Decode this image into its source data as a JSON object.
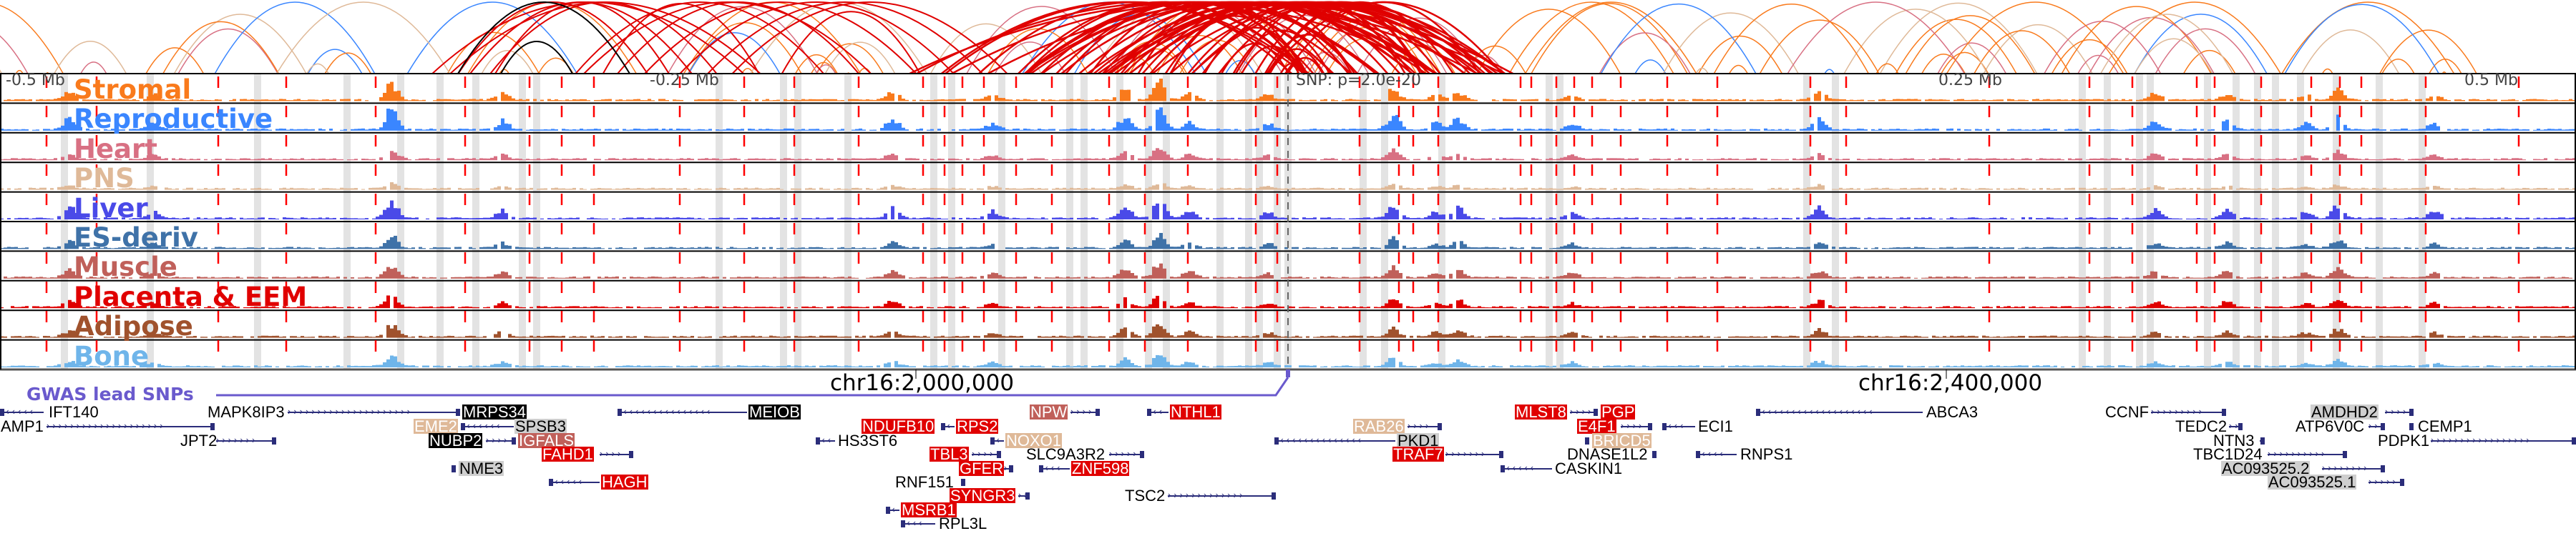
{
  "tracks": [
    {
      "label": "Stromal",
      "color": "#f97a1c"
    },
    {
      "label": "Reproductive",
      "color": "#3a86ff"
    },
    {
      "label": "Heart",
      "color": "#d87083"
    },
    {
      "label": "PNS",
      "color": "#dfb998"
    },
    {
      "label": "Liver",
      "color": "#4a4ae8"
    },
    {
      "label": "ES-deriv",
      "color": "#3f72a8"
    },
    {
      "label": "Muscle",
      "color": "#c0605a"
    },
    {
      "label": "Placenta & EEM",
      "color": "#e00000"
    },
    {
      "label": "Adipose",
      "color": "#a0522d"
    },
    {
      "label": "Bone",
      "color": "#6fb5ea"
    }
  ],
  "axis": {
    "left": "-0.5 Mb",
    "left_mid": "-0.25 Mb",
    "snp": "SNP: p=2.0e-20",
    "right_mid": "0.25 Mb",
    "right": "0.5 Mb"
  },
  "coordinates": [
    "chr16:2,000,000",
    "chr16:2,400,000"
  ],
  "gwas": {
    "label": "GWAS lead SNPs",
    "color": "#6a5acd"
  },
  "genes": [
    {
      "name": "IFT140",
      "highlight": "none"
    },
    {
      "name": "AMP1",
      "highlight": "none"
    },
    {
      "name": "MAPK8IP3",
      "highlight": "none"
    },
    {
      "name": "MRPS34",
      "highlight": "black"
    },
    {
      "name": "EME2",
      "highlight": "tan"
    },
    {
      "name": "SPSB3",
      "highlight": "gray"
    },
    {
      "name": "JPT2",
      "highlight": "none"
    },
    {
      "name": "NUBP2",
      "highlight": "black"
    },
    {
      "name": "IGFALS",
      "highlight": "brown"
    },
    {
      "name": "FAHD1",
      "highlight": "red"
    },
    {
      "name": "NME3",
      "highlight": "gray"
    },
    {
      "name": "HAGH",
      "highlight": "red"
    },
    {
      "name": "MEIOB",
      "highlight": "black"
    },
    {
      "name": "HS3ST6",
      "highlight": "none"
    },
    {
      "name": "NPW",
      "highlight": "brown"
    },
    {
      "name": "NTHL1",
      "highlight": "red"
    },
    {
      "name": "NDUFB10",
      "highlight": "red"
    },
    {
      "name": "RPS2",
      "highlight": "red"
    },
    {
      "name": "NOXO1",
      "highlight": "tan"
    },
    {
      "name": "TBL3",
      "highlight": "red"
    },
    {
      "name": "SLC9A3R2",
      "highlight": "none"
    },
    {
      "name": "GFER",
      "highlight": "red"
    },
    {
      "name": "ZNF598",
      "highlight": "red"
    },
    {
      "name": "RNF151",
      "highlight": "none"
    },
    {
      "name": "TSC2",
      "highlight": "none"
    },
    {
      "name": "SYNGR3",
      "highlight": "red"
    },
    {
      "name": "MSRB1",
      "highlight": "red"
    },
    {
      "name": "RPL3L",
      "highlight": "none"
    },
    {
      "name": "RAB26",
      "highlight": "tan"
    },
    {
      "name": "PKD1",
      "highlight": "gray"
    },
    {
      "name": "TRAF7",
      "highlight": "red"
    },
    {
      "name": "MLST8",
      "highlight": "red"
    },
    {
      "name": "PGP",
      "highlight": "red"
    },
    {
      "name": "E4F1",
      "highlight": "red"
    },
    {
      "name": "ECI1",
      "highlight": "none"
    },
    {
      "name": "BRICD5",
      "highlight": "tan"
    },
    {
      "name": "DNASE1L2",
      "highlight": "none"
    },
    {
      "name": "CASKIN1",
      "highlight": "none"
    },
    {
      "name": "RNPS1",
      "highlight": "none"
    },
    {
      "name": "ABCA3",
      "highlight": "none"
    },
    {
      "name": "CCNF",
      "highlight": "none"
    },
    {
      "name": "TEDC2",
      "highlight": "none"
    },
    {
      "name": "NTN3",
      "highlight": "none"
    },
    {
      "name": "TBC1D24",
      "highlight": "none"
    },
    {
      "name": "AC093525.2",
      "highlight": "gray"
    },
    {
      "name": "AC093525.1",
      "highlight": "gray"
    },
    {
      "name": "AMDHD2",
      "highlight": "gray"
    },
    {
      "name": "ATP6V0C",
      "highlight": "none"
    },
    {
      "name": "CEMP1",
      "highlight": "none"
    },
    {
      "name": "PDPK1",
      "highlight": "none"
    }
  ]
}
